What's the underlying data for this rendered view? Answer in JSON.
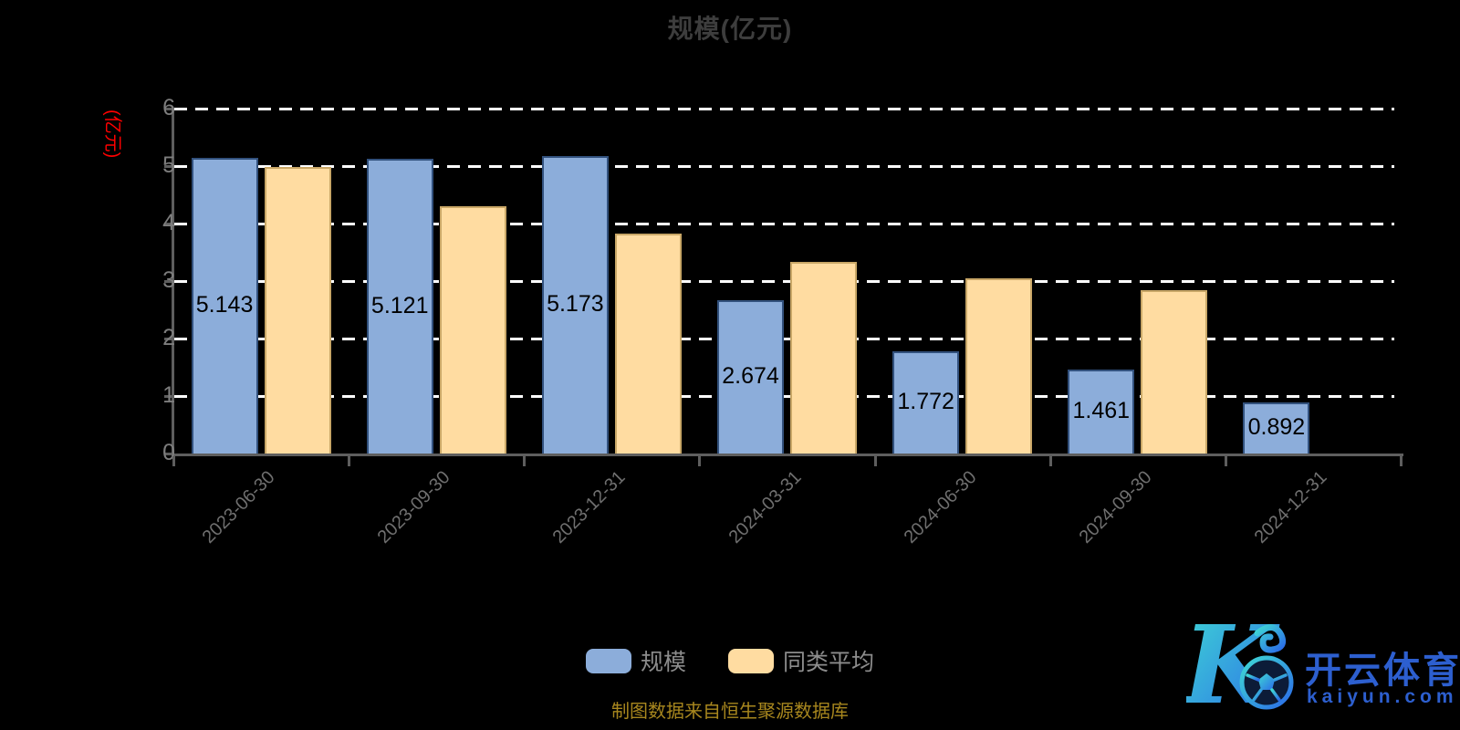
{
  "title": "规模(亿元)",
  "source_note": "制图数据来自恒生聚源数据库",
  "chart_data": {
    "type": "bar",
    "title": "规模(亿元)",
    "categories": [
      "2023-06-30",
      "2023-09-30",
      "2023-12-31",
      "2024-03-31",
      "2024-06-30",
      "2024-09-30",
      "2024-12-31"
    ],
    "series": [
      {
        "name": "规模",
        "color": "#8cadda",
        "border_color": "#32517d",
        "values": [
          5.143,
          5.121,
          5.173,
          2.674,
          1.772,
          1.461,
          0.892
        ],
        "data_labels": [
          "5.143",
          "5.121",
          "5.173",
          "2.674",
          "1.772",
          "1.461",
          "0.892"
        ],
        "labels_shown": true
      },
      {
        "name": "同类平均",
        "color": "#ffdca1",
        "border_color": "#c9a767",
        "values": [
          4.98,
          4.3,
          3.83,
          3.33,
          3.05,
          2.84,
          null
        ],
        "data_labels": [],
        "labels_shown": false
      }
    ],
    "xlabel": "",
    "ylabel": "(亿元)",
    "ylim": [
      0,
      6
    ],
    "y_ticks": [
      0,
      1,
      2,
      3,
      4,
      5,
      6
    ],
    "grid": "dashed-white-horizontal",
    "legend_position": "bottom-center"
  },
  "y_axis": {
    "name": "(亿元)",
    "name_color": "#ff0000"
  },
  "legend": {
    "items": [
      {
        "label": "规模",
        "color": "#8cadda"
      },
      {
        "label": "同类平均",
        "color": "#ffdca1"
      }
    ]
  },
  "watermark": {
    "monogram": "K",
    "brand": "开云体育",
    "domain": "kaiyun.com",
    "gradient_start": "#3fd9d4",
    "gradient_end": "#2b6be8",
    "text_color": "#2d5fcf"
  },
  "colors": {
    "background": "#000000",
    "title": "#3d3d3d",
    "axis_line": "#5e5e5e",
    "gridline": "#ffffff",
    "y_tick_label": "#7d7d7d",
    "x_tick_label": "#6f6f6f",
    "bar_value_label": "#000000",
    "legend_text": "#8c8c8c",
    "source_text": "#a8871e"
  }
}
